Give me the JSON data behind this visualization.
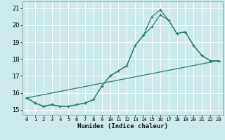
{
  "xlabel": "Humidex (Indice chaleur)",
  "xlim": [
    -0.5,
    23.5
  ],
  "ylim": [
    14.7,
    21.4
  ],
  "yticks": [
    15,
    16,
    17,
    18,
    19,
    20,
    21
  ],
  "xticks": [
    0,
    1,
    2,
    3,
    4,
    5,
    6,
    7,
    8,
    9,
    10,
    11,
    12,
    13,
    14,
    15,
    16,
    17,
    18,
    19,
    20,
    21,
    22,
    23
  ],
  "bg_color": "#cce9eb",
  "grid_color": "#ffffff",
  "line_color": "#2e7d6e",
  "line1_x": [
    0,
    1,
    2,
    3,
    4,
    5,
    6,
    7,
    8,
    9,
    10,
    11,
    12,
    13,
    14,
    15,
    16,
    17,
    18,
    19,
    20,
    21,
    22,
    23
  ],
  "line1_y": [
    15.7,
    15.4,
    15.2,
    15.3,
    15.2,
    15.2,
    15.3,
    15.4,
    15.6,
    16.4,
    17.0,
    17.3,
    17.6,
    18.8,
    19.4,
    19.9,
    20.6,
    20.3,
    19.5,
    19.6,
    18.8,
    18.2,
    17.9,
    17.9
  ],
  "line2_x": [
    0,
    1,
    2,
    3,
    4,
    5,
    6,
    7,
    8,
    9,
    10,
    11,
    12,
    13,
    14,
    15,
    16,
    17,
    18,
    19,
    20,
    21,
    22,
    23
  ],
  "line2_y": [
    15.7,
    15.4,
    15.2,
    15.3,
    15.2,
    15.2,
    15.3,
    15.4,
    15.6,
    16.4,
    17.0,
    17.3,
    17.6,
    18.8,
    19.4,
    20.5,
    20.9,
    20.3,
    19.5,
    19.6,
    18.8,
    18.2,
    17.9,
    17.9
  ],
  "line3_x": [
    0,
    23
  ],
  "line3_y": [
    15.7,
    17.9
  ]
}
